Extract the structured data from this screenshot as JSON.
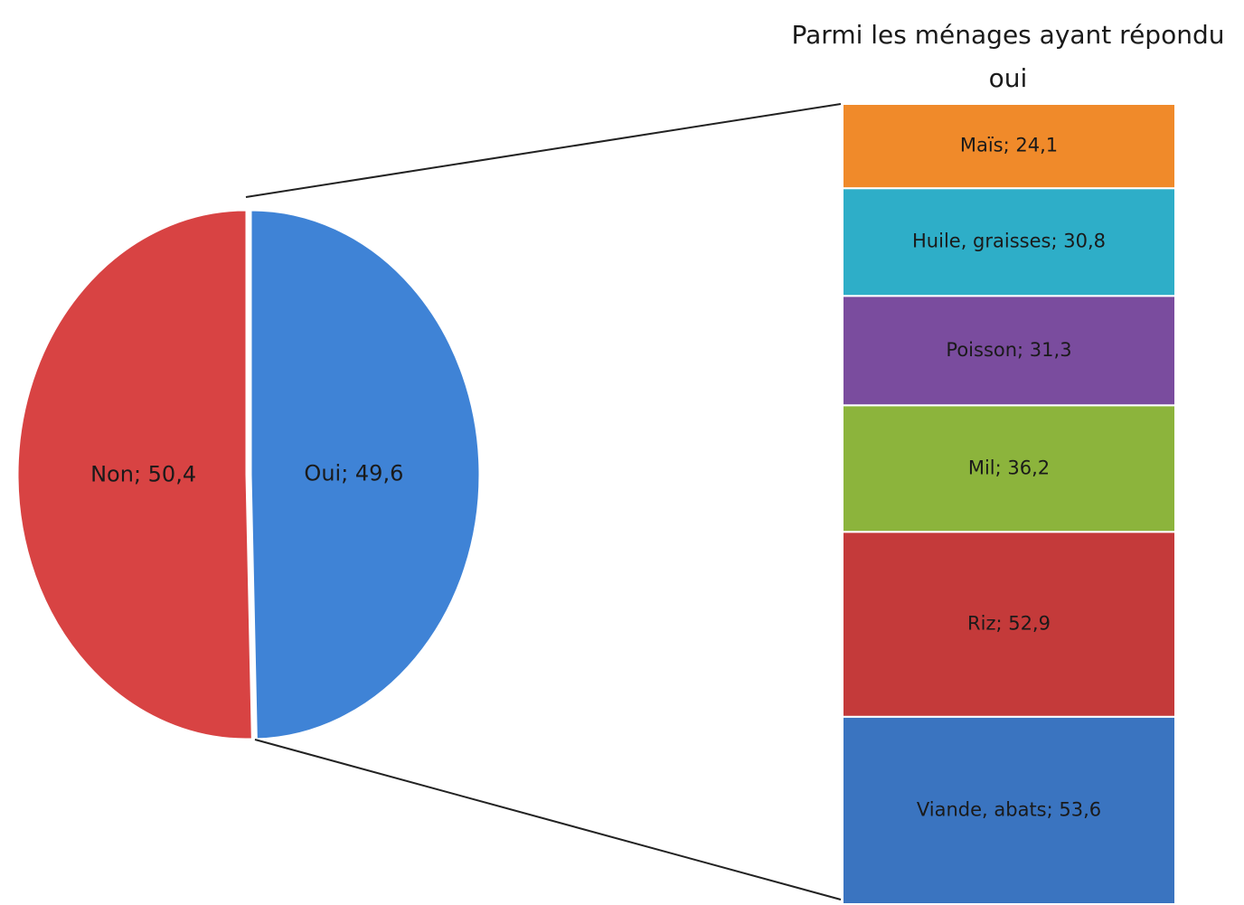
{
  "chart_data": [
    {
      "type": "pie",
      "values": [
        49.6,
        50.4
      ],
      "value_labels": [
        "Oui; 49,6",
        "Non; 50,4"
      ],
      "colors": [
        "#3f83d6",
        "#d84343"
      ]
    },
    {
      "type": "bar",
      "title": "Parmi les ménages ayant répondu oui",
      "values": [
        53.6,
        52.9,
        36.2,
        31.3,
        30.8,
        24.1
      ],
      "value_labels": [
        "Viande, abats; 53,6",
        "Riz; 52,9",
        "Mil; 36,2",
        "Poisson; 31,3",
        "Huile, graisses; 30,8",
        "Maïs; 24,1"
      ],
      "colors": [
        "#3a74c0",
        "#c43a3a",
        "#8cb43c",
        "#7a4c9e",
        "#2eaec8",
        "#f08a2a"
      ]
    }
  ]
}
